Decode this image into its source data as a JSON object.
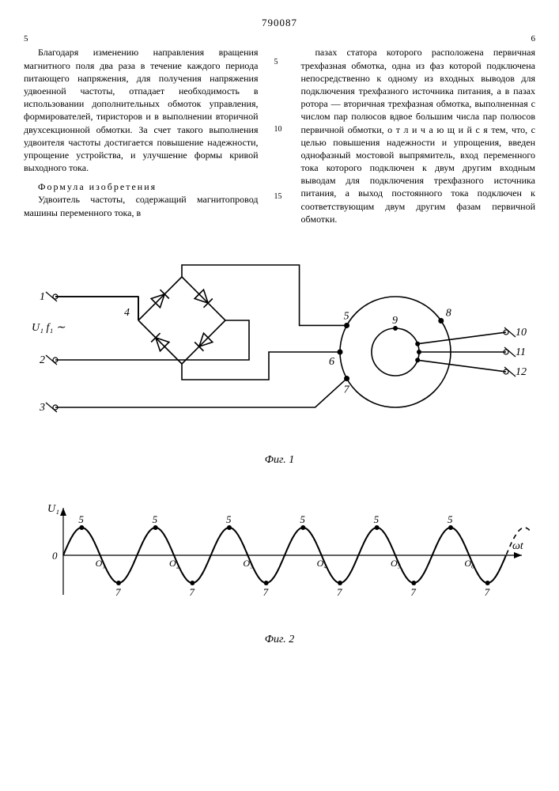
{
  "patent_number": "790087",
  "col_left_num": "5",
  "col_right_num": "6",
  "line_markers": [
    "5",
    "10",
    "15"
  ],
  "left_col": {
    "p1": "Благодаря изменению направления вращения магнитного поля два раза в течение каждого периода питающего напряжения, для получения напряжения удвоенной частоты, отпадает необходимость в использовании дополнительных обмоток управления, формирователей, тиристоров и в выполнении вторичной двухсекционной обмотки. За счет такого выполнения удвоителя частоты достигается повышение надежности, упрощение устройства, и улучшение формы кривой выходного тока.",
    "formula_title": "Формула изобретения",
    "p2": "Удвоитель частоты, содержащий магнитопровод машины переменного тока, в"
  },
  "right_col": {
    "p1": "пазах статора которого расположена первичная трехфазная обмотка, одна из фаз которой подключена непосредственно к одному из входных выводов для подключения трехфазного источника питания, а в пазах ротора — вторичная трехфазная обмотка, выполненная с числом пар полюсов вдвое большим числа пар полюсов первичной обмотки, о т л и ч а ю щ и й с я тем, что, с целью повышения надежности и упрощения, введен однофазный мостовой выпрямитель, вход переменного тока которого подключен к двум другим входным выводам для подключения трехфазного источника питания, а выход постоянного тока подключен к соответствующим двум другим фазам первичной обмотки."
  },
  "fig1": {
    "caption": "Фиг. 1",
    "input_label": "U₁ f₁ ∼",
    "terminals_left": [
      "1",
      "2",
      "3"
    ],
    "bridge_node": "4",
    "machine_outer": [
      "5",
      "6",
      "7",
      "8"
    ],
    "machine_inner": "9",
    "terminals_right": [
      "10",
      "11",
      "12"
    ],
    "stroke_color": "#000000",
    "stroke_width": 1.6,
    "background": "#ffffff"
  },
  "fig2": {
    "caption": "Фиг. 2",
    "y_label": "U₁",
    "x_label": "ωt",
    "origin_label": "0",
    "zero_crossings": [
      "O₁",
      "O₂",
      "O₃",
      "O₄",
      "O₅",
      "O₆"
    ],
    "upper_peak_label": "5",
    "lower_peak_label": "7",
    "n_cycles": 6,
    "amplitude": 35,
    "solid_color": "#000000",
    "dashed_color": "#000000",
    "stroke_width": 1.6,
    "dash_pattern": "6 5",
    "background": "#ffffff"
  }
}
